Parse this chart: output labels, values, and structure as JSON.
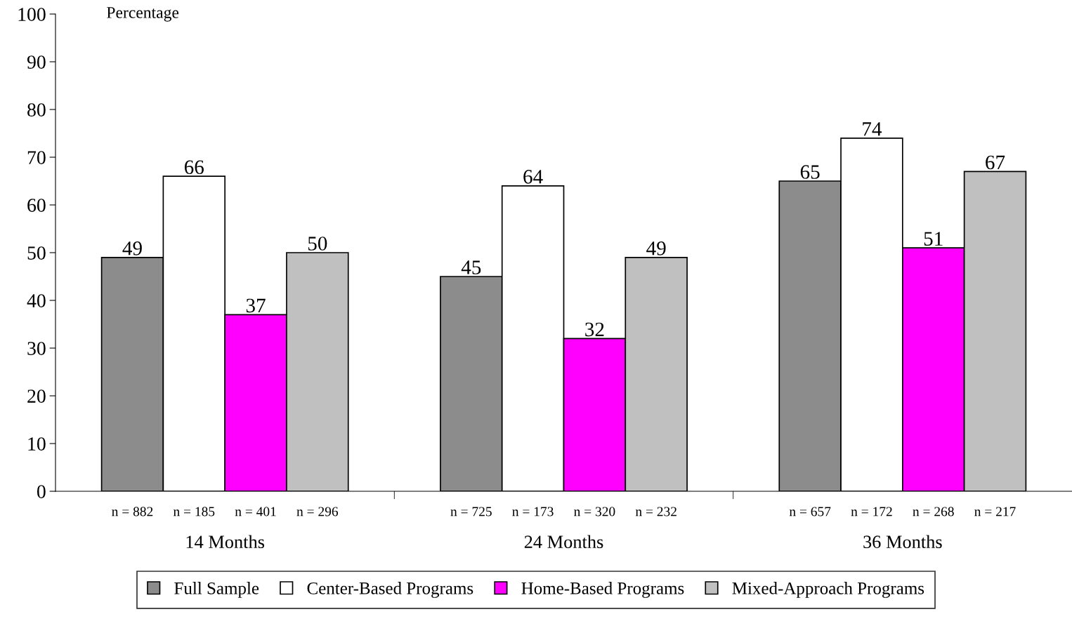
{
  "chart_data": {
    "type": "bar",
    "ylabel": "Percentage",
    "categories": [
      "14 Months",
      "24 Months",
      "36 Months"
    ],
    "series": [
      {
        "name": "Full Sample",
        "color": "#8c8c8c",
        "values": [
          49,
          45,
          65
        ]
      },
      {
        "name": "Center-Based Programs",
        "color": "#ffffff",
        "values": [
          66,
          64,
          74
        ]
      },
      {
        "name": "Home-Based Programs",
        "color": "#ff00ff",
        "values": [
          37,
          32,
          51
        ]
      },
      {
        "name": "Mixed-Approach Programs",
        "color": "#c0c0c0",
        "values": [
          50,
          49,
          67
        ]
      }
    ],
    "ylim": [
      0,
      100
    ],
    "yticks": [
      0,
      10,
      20,
      30,
      40,
      50,
      60,
      70,
      80,
      90,
      100
    ],
    "data_labels": true,
    "grid": false,
    "legend": "bottom",
    "annotations": [
      "n = 882",
      "n = 185",
      "n = 401",
      "n = 296",
      "n = 725",
      "n = 173",
      "n = 320",
      "n = 232",
      "n = 657",
      "n = 172",
      "n = 268",
      "n = 217"
    ]
  }
}
